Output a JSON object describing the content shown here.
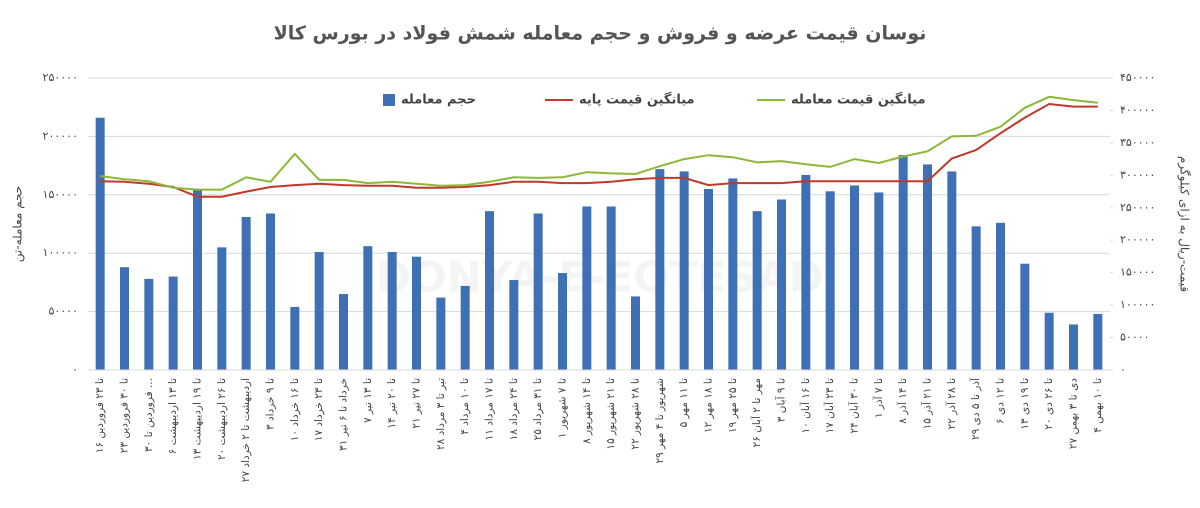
{
  "chart_data": {
    "type": "bar",
    "title": "نوسان قیمت عرضه و فروش و حجم معامله شمش فولاد در بورس کالا",
    "watermark": "DONYA-E-EQTESAD",
    "ylabel": "حجم معامله-تن",
    "y2label": "قیمت-ریال به ازای کیلوگرم",
    "categories": [
      "۱۶ تا ۲۳ فروردین",
      "۲۳ تا ۳۰ فروردین",
      "۳۰ فروردین تا ...",
      "۶ تا ۱۳ اردیبهشت",
      "۱۳ تا ۱۹ اردیبهشت",
      "۲۰ تا ۲۶ اردیبهشت",
      "۲۷ اردیبهشت تا ۲ خرداد",
      "۳ تا ۹ خرداد",
      "۱۰ تا ۱۶ خرداد",
      "۱۷ تا ۲۳ خرداد",
      "۳۱ خرداد تا ۶ تیر",
      "۷ تا ۱۳ تیر",
      "۱۴ تا ۲۰ تیر",
      "۲۱ تا ۲۷ تیر",
      "۲۸ تیر تا ۳ مرداد",
      "۴ تا ۱۰ مرداد",
      "۱۱ تا ۱۷ مرداد",
      "۱۸ تا ۲۴ مرداد",
      "۲۵ تا ۳۱ مرداد",
      "۱ تا ۷ شهریور",
      "۸ تا ۱۴ شهریور",
      "۱۵ تا ۲۱ شهریور",
      "۲۲ تا ۲۸ شهریور",
      "۲۹ شهریور تا ۴ مهر",
      "۵ تا ۱۱ مهر",
      "۱۲ تا ۱۸ مهر",
      "۱۹ تا ۲۵ مهر",
      "۲۶ مهر تا ۲ آبان",
      "۳ تا ۹ آبان",
      "۱۰ تا ۱۶ آبان",
      "۱۷ تا ۲۳ آبان",
      "۲۴ تا ۳۰ آبان",
      "۱ تا ۷ آذر",
      "۸ تا ۱۴ آذر",
      "۱۵ تا ۲۱ آذر",
      "۲۲ تا ۲۸ آذر",
      "۲۹ آذر تا ۵ دی",
      "۶ تا ۱۲ دی",
      "۱۳ تا ۱۹ دی",
      "۲۰ تا ۲۶ دی",
      "۲۷ دی تا ۳ بهمن",
      "۴ تا ۱۰ بهمن"
    ],
    "series": [
      {
        "name": "حجم معامله",
        "type": "bar",
        "color": "#3f6fb5",
        "values": [
          216000,
          88000,
          78000,
          80000,
          154000,
          105000,
          131000,
          134000,
          54000,
          101000,
          65000,
          106000,
          101000,
          97000,
          62000,
          72000,
          136000,
          77000,
          134000,
          83000,
          140000,
          140000,
          63000,
          172000,
          170000,
          155000,
          164000,
          136000,
          146000,
          167000,
          153000,
          158000,
          152000,
          184000,
          176000,
          170000,
          123000,
          126000,
          91000,
          49000,
          39000,
          48000
        ]
      },
      {
        "name": "میانگین قیمت پایه",
        "type": "line",
        "axis": "y2",
        "color": "#c0392b",
        "values": [
          291000,
          290000,
          287000,
          282000,
          267000,
          267000,
          275000,
          282000,
          285000,
          287000,
          285000,
          284000,
          284000,
          281000,
          281000,
          282000,
          285000,
          290000,
          290000,
          288000,
          288000,
          290000,
          294000,
          296000,
          296000,
          285000,
          288000,
          288000,
          288000,
          291000,
          291000,
          291000,
          291000,
          291000,
          291000,
          326000,
          339000,
          365000,
          389000,
          410000,
          406000,
          406000
        ]
      },
      {
        "name": "میانگین قیمت معامله",
        "type": "line",
        "axis": "y2",
        "color": "#8cb83a",
        "values": [
          299000,
          294000,
          291000,
          281000,
          278000,
          278000,
          297000,
          290000,
          333000,
          293000,
          293000,
          288000,
          290000,
          287000,
          284000,
          285000,
          290000,
          297000,
          296000,
          297000,
          305000,
          303000,
          302000,
          314000,
          325000,
          331000,
          328000,
          320000,
          322000,
          317000,
          313000,
          325000,
          319000,
          329000,
          337000,
          360000,
          361000,
          375000,
          404000,
          421000,
          416000,
          412000
        ]
      }
    ],
    "ylim": [
      0,
      250000
    ],
    "yticks": [
      {
        "value": 0,
        "label": "۰"
      },
      {
        "value": 50000,
        "label": "۵۰۰۰۰"
      },
      {
        "value": 100000,
        "label": "۱۰۰۰۰۰"
      },
      {
        "value": 150000,
        "label": "۱۵۰۰۰۰"
      },
      {
        "value": 200000,
        "label": "۲۰۰۰۰۰"
      },
      {
        "value": 250000,
        "label": "۲۵۰۰۰۰"
      }
    ],
    "y2lim": [
      0,
      450000
    ],
    "y2ticks": [
      {
        "value": 0,
        "label": "۰"
      },
      {
        "value": 50000,
        "label": "۵۰۰۰۰"
      },
      {
        "value": 100000,
        "label": "۱۰۰۰۰۰"
      },
      {
        "value": 150000,
        "label": "۱۵۰۰۰۰"
      },
      {
        "value": 200000,
        "label": "۲۰۰۰۰۰"
      },
      {
        "value": 250000,
        "label": "۲۵۰۰۰۰"
      },
      {
        "value": 300000,
        "label": "۳۰۰۰۰۰"
      },
      {
        "value": 350000,
        "label": "۳۵۰۰۰۰"
      },
      {
        "value": 400000,
        "label": "۴۰۰۰۰۰"
      },
      {
        "value": 450000,
        "label": "۴۵۰۰۰۰"
      }
    ],
    "grid": true,
    "legend": "top"
  }
}
